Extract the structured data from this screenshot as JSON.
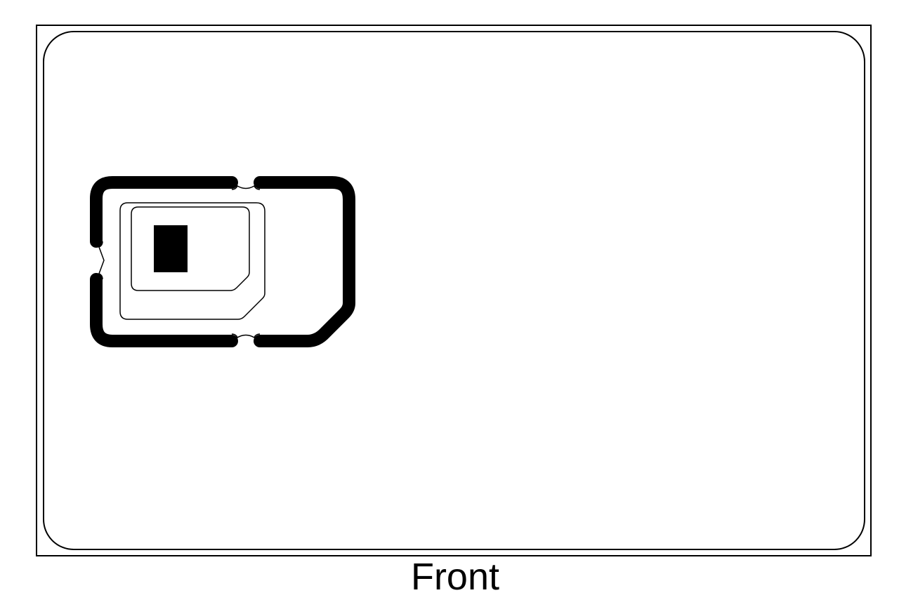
{
  "caption": "Front",
  "colors": {
    "background": "#ffffff",
    "line": "#000000",
    "contact_pad": "#000000"
  },
  "elements": {
    "card": "card-outline",
    "sim_mini": "mini-sim-cutout",
    "sim_micro": "micro-sim-outline",
    "sim_nano": "nano-sim-outline",
    "chip": "chip-contact"
  }
}
